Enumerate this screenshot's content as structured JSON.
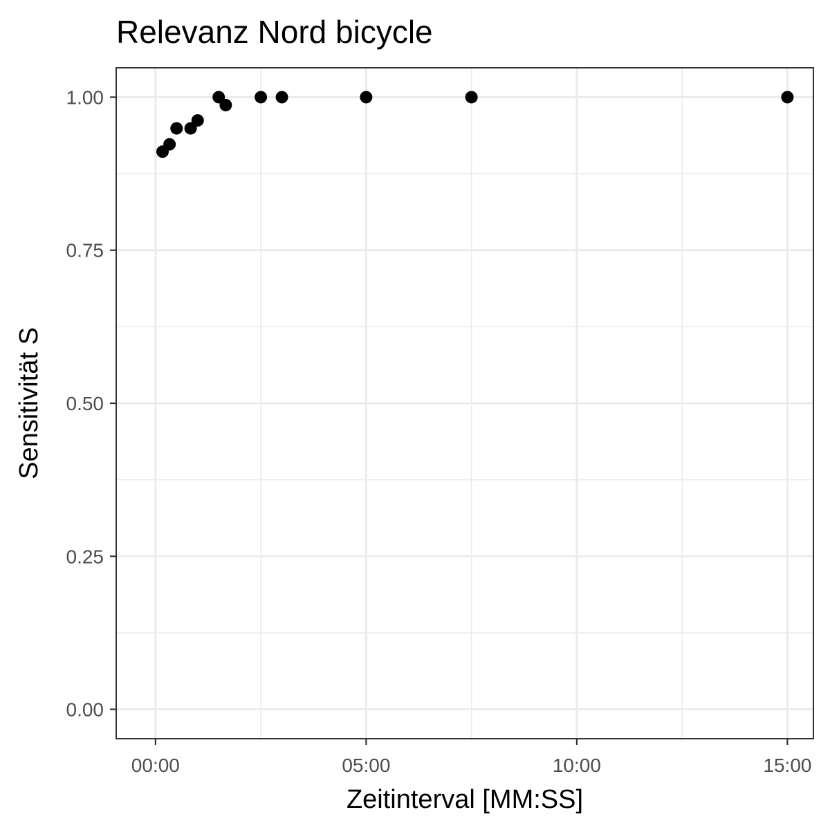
{
  "chart_data": {
    "type": "scatter",
    "title": "Relevanz Nord bicycle",
    "xlabel": "Zeitinterval [MM:SS]",
    "ylabel": "Sensitivität S",
    "x_format": "MM:SS",
    "xlim": [
      "-00:56",
      "15:37"
    ],
    "ylim": [
      -0.048,
      1.048
    ],
    "x_ticks": [
      "00:00",
      "05:00",
      "10:00",
      "15:00"
    ],
    "y_ticks": [
      "0.00",
      "0.25",
      "0.50",
      "0.75",
      "1.00"
    ],
    "grid": true,
    "legend": "none",
    "point_color": "#000000",
    "points": [
      {
        "x": "00:10",
        "y": 0.911
      },
      {
        "x": "00:20",
        "y": 0.923
      },
      {
        "x": "00:30",
        "y": 0.949
      },
      {
        "x": "00:50",
        "y": 0.949
      },
      {
        "x": "01:00",
        "y": 0.962
      },
      {
        "x": "01:30",
        "y": 1.0
      },
      {
        "x": "01:40",
        "y": 0.987
      },
      {
        "x": "02:30",
        "y": 1.0
      },
      {
        "x": "03:00",
        "y": 1.0
      },
      {
        "x": "05:00",
        "y": 1.0
      },
      {
        "x": "07:30",
        "y": 1.0
      },
      {
        "x": "15:00",
        "y": 1.0
      }
    ]
  }
}
